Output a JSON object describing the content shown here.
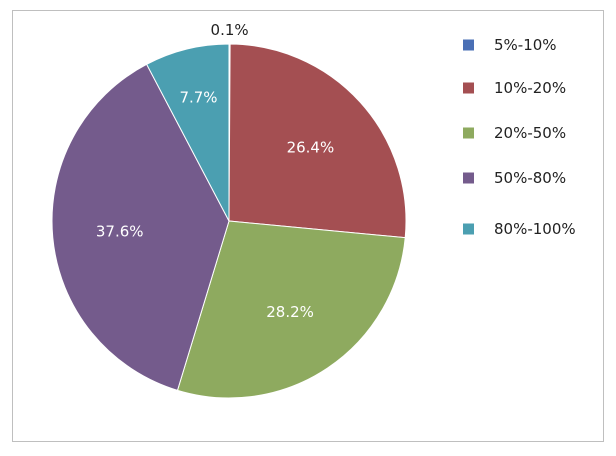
{
  "chart_data": {
    "type": "pie",
    "title": "",
    "categories": [
      "5%-10%",
      "10%-20%",
      "20%-50%",
      "50%-80%",
      "80%-100%"
    ],
    "values": [
      0.1,
      26.4,
      28.2,
      37.6,
      7.7
    ],
    "labels": [
      "0.1%",
      "26.4%",
      "28.2%",
      "37.6%",
      "7.7%"
    ],
    "colors": [
      "#4a6fb5",
      "#a44f52",
      "#8eaa5f",
      "#745b8c",
      "#4b9fb1"
    ],
    "legend_position": "right",
    "start_angle": "12 o'clock",
    "direction": "clockwise"
  }
}
